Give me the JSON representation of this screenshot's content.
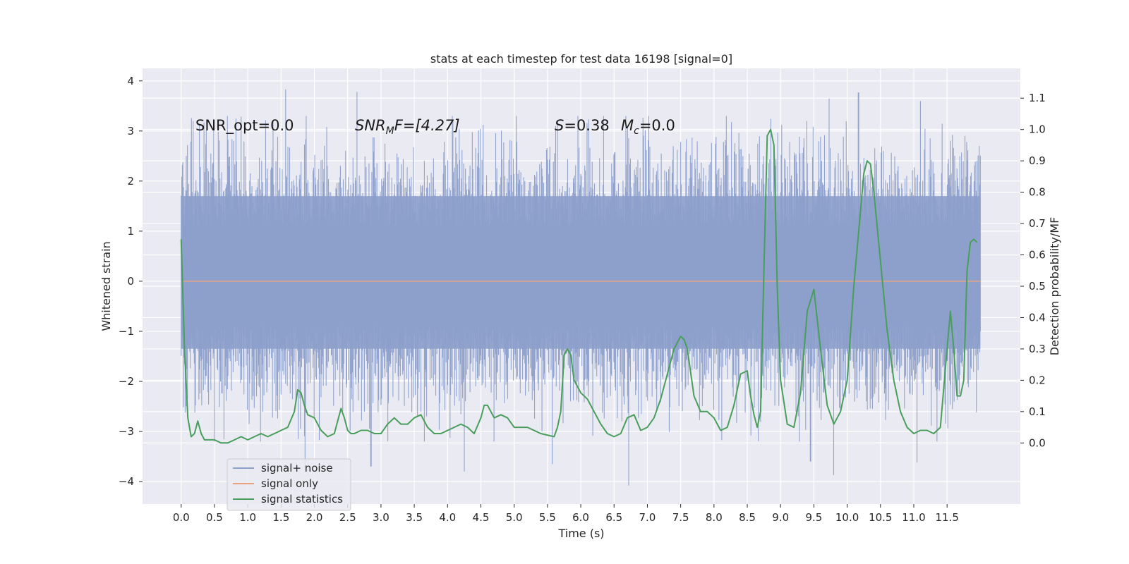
{
  "chart_data": {
    "type": "line",
    "title": "stats at each timestep for test data 16198 [signal=0]",
    "xlabel": "Time (s)",
    "ylabel_left": "Whitened strain",
    "ylabel_right": "Detection probability/MF",
    "xlim": [
      -0.58,
      12.6
    ],
    "ylim_left": [
      -4.45,
      4.25
    ],
    "ylim_right": [
      -0.195,
      1.195
    ],
    "x_ticks": [
      "0.0",
      "0.5",
      "1.0",
      "1.5",
      "2.0",
      "2.5",
      "3.0",
      "3.5",
      "4.0",
      "4.5",
      "5.0",
      "5.5",
      "6.0",
      "6.5",
      "7.0",
      "7.5",
      "8.0",
      "8.5",
      "9.0",
      "9.5",
      "10.0",
      "10.5",
      "11.0",
      "11.5"
    ],
    "y_ticks_left": [
      "−4",
      "−3",
      "−2",
      "−1",
      "0",
      "1",
      "2",
      "3",
      "4"
    ],
    "y_ticks_right": [
      "0.0",
      "0.1",
      "0.2",
      "0.3",
      "0.4",
      "0.5",
      "0.6",
      "0.7",
      "0.8",
      "0.9",
      "1.0",
      "1.1"
    ],
    "grid": true,
    "legend_position": "lower-left",
    "annotations": {
      "snr_opt": "SNR_opt=0.0",
      "snr_mf_label": "SNR",
      "snr_mf_sub": "M",
      "snr_mf_rest": "F=[4.27]",
      "s_var": "S",
      "s_val": "=0.38",
      "mc_var": "M",
      "mc_sub": "c",
      "mc_val": "=0.0"
    },
    "series": [
      {
        "name": "signal+ noise",
        "color": "#8da0cb",
        "note_envelope": "dense noise, approx symmetric",
        "x_range": [
          0.0,
          12.0
        ],
        "envelope_core": [
          -1.35,
          1.7
        ],
        "peaks_upper": [
          [
            0.18,
            3.2
          ],
          [
            0.82,
            3.25
          ],
          [
            1.57,
            3.83
          ],
          [
            2.64,
            3.78
          ],
          [
            5.62,
            3.1
          ],
          [
            10.17,
            3.77
          ],
          [
            9.73,
            3.65
          ],
          [
            11.1,
            3.6
          ],
          [
            11.98,
            2.7
          ]
        ],
        "peaks_lower": [
          [
            1.86,
            -3.72
          ],
          [
            2.85,
            -3.7
          ],
          [
            4.25,
            -3.8
          ],
          [
            5.57,
            -3.65
          ],
          [
            6.72,
            -4.08
          ],
          [
            9.45,
            -3.6
          ],
          [
            9.8,
            -3.87
          ],
          [
            11.05,
            -3.62
          ]
        ]
      },
      {
        "name": "signal only",
        "color": "#e9a383",
        "x": [
          0.0,
          12.0
        ],
        "y": [
          0.0,
          0.0
        ]
      },
      {
        "name": "signal statistics",
        "color": "#4a9e5c",
        "axis": "right",
        "x": [
          0.0,
          0.05,
          0.1,
          0.15,
          0.2,
          0.25,
          0.3,
          0.35,
          0.4,
          0.5,
          0.6,
          0.7,
          0.8,
          0.9,
          1.0,
          1.1,
          1.2,
          1.3,
          1.4,
          1.5,
          1.6,
          1.7,
          1.75,
          1.8,
          1.85,
          1.9,
          2.0,
          2.1,
          2.2,
          2.3,
          2.4,
          2.45,
          2.5,
          2.55,
          2.6,
          2.7,
          2.8,
          2.9,
          3.0,
          3.1,
          3.2,
          3.3,
          3.4,
          3.5,
          3.6,
          3.7,
          3.8,
          3.9,
          4.0,
          4.1,
          4.2,
          4.3,
          4.4,
          4.5,
          4.55,
          4.6,
          4.7,
          4.8,
          4.9,
          5.0,
          5.2,
          5.4,
          5.6,
          5.65,
          5.7,
          5.75,
          5.8,
          5.85,
          5.9,
          6.0,
          6.1,
          6.2,
          6.3,
          6.4,
          6.5,
          6.6,
          6.7,
          6.8,
          6.9,
          7.0,
          7.1,
          7.2,
          7.3,
          7.4,
          7.5,
          7.55,
          7.6,
          7.7,
          7.8,
          7.9,
          8.0,
          8.1,
          8.2,
          8.3,
          8.4,
          8.5,
          8.55,
          8.6,
          8.65,
          8.7,
          8.75,
          8.8,
          8.85,
          8.9,
          8.95,
          9.0,
          9.1,
          9.2,
          9.3,
          9.4,
          9.5,
          9.6,
          9.7,
          9.8,
          9.9,
          10.0,
          10.1,
          10.2,
          10.25,
          10.3,
          10.35,
          10.4,
          10.5,
          10.6,
          10.7,
          10.8,
          10.9,
          11.0,
          11.1,
          11.2,
          11.3,
          11.4,
          11.5,
          11.55,
          11.6,
          11.65,
          11.7,
          11.75,
          11.8,
          11.85,
          11.9,
          11.95
        ],
        "y": [
          0.65,
          0.3,
          0.08,
          0.02,
          0.03,
          0.07,
          0.03,
          0.01,
          0.01,
          0.01,
          0.0,
          0.0,
          0.01,
          0.02,
          0.01,
          0.02,
          0.03,
          0.02,
          0.03,
          0.04,
          0.05,
          0.1,
          0.17,
          0.16,
          0.12,
          0.09,
          0.08,
          0.04,
          0.02,
          0.03,
          0.11,
          0.08,
          0.04,
          0.03,
          0.03,
          0.04,
          0.04,
          0.03,
          0.03,
          0.06,
          0.08,
          0.06,
          0.06,
          0.08,
          0.09,
          0.05,
          0.03,
          0.03,
          0.04,
          0.05,
          0.06,
          0.05,
          0.03,
          0.08,
          0.12,
          0.12,
          0.08,
          0.09,
          0.08,
          0.05,
          0.05,
          0.03,
          0.02,
          0.05,
          0.1,
          0.28,
          0.3,
          0.28,
          0.2,
          0.16,
          0.14,
          0.1,
          0.06,
          0.03,
          0.02,
          0.03,
          0.08,
          0.09,
          0.04,
          0.05,
          0.08,
          0.14,
          0.22,
          0.3,
          0.34,
          0.33,
          0.3,
          0.15,
          0.1,
          0.1,
          0.08,
          0.04,
          0.05,
          0.12,
          0.22,
          0.23,
          0.15,
          0.09,
          0.05,
          0.1,
          0.55,
          0.98,
          1.0,
          0.95,
          0.5,
          0.2,
          0.06,
          0.05,
          0.16,
          0.42,
          0.49,
          0.3,
          0.12,
          0.06,
          0.1,
          0.2,
          0.5,
          0.74,
          0.86,
          0.9,
          0.89,
          0.8,
          0.58,
          0.36,
          0.2,
          0.1,
          0.05,
          0.03,
          0.04,
          0.04,
          0.03,
          0.05,
          0.3,
          0.42,
          0.3,
          0.15,
          0.15,
          0.2,
          0.55,
          0.64,
          0.65,
          0.64
        ]
      }
    ]
  },
  "legend": [
    {
      "label": "signal+ noise",
      "color": "#8da0cb"
    },
    {
      "label": "signal only",
      "color": "#e9a383"
    },
    {
      "label": "signal statistics",
      "color": "#4a9e5c"
    }
  ]
}
